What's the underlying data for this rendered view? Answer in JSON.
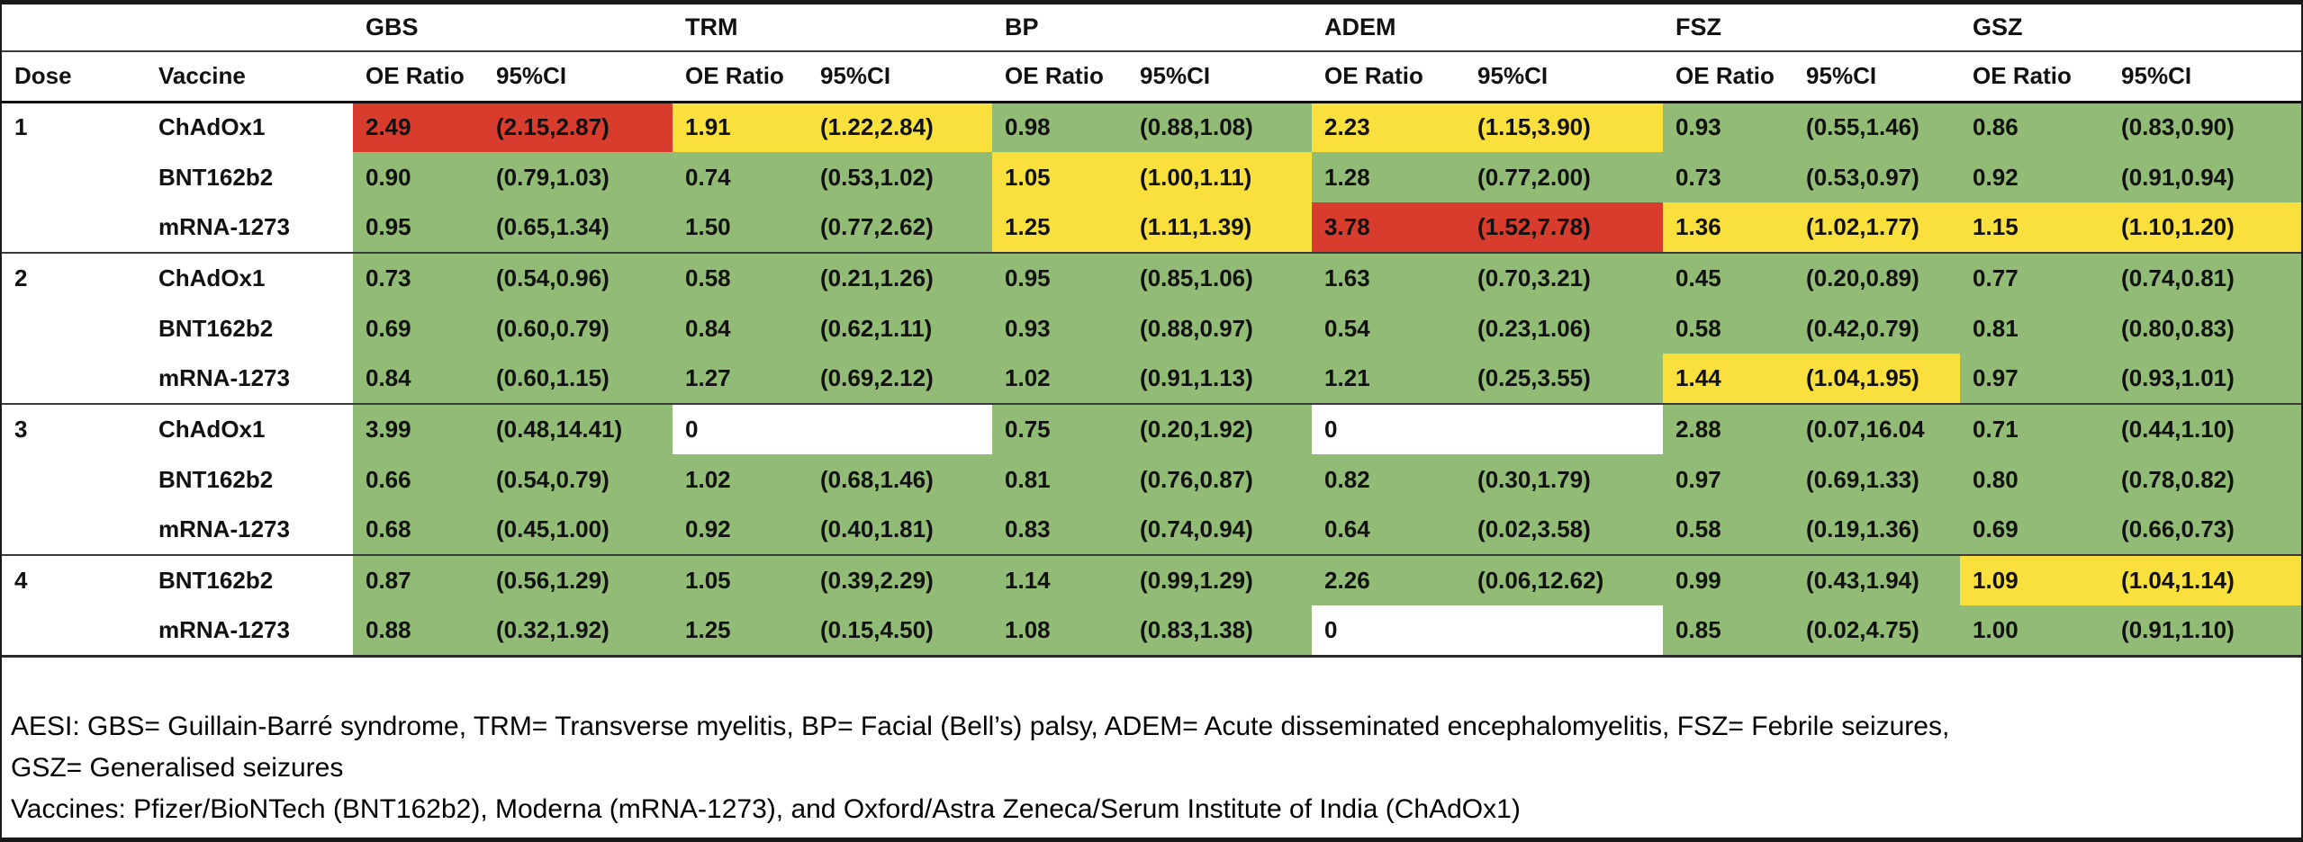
{
  "colors": {
    "green": "#92BB76",
    "yellow": "#FAE03C",
    "red": "#D73C2D",
    "empty": "#FFFFFF"
  },
  "table": {
    "group_headers": [
      "GBS",
      "TRM",
      "BP",
      "ADEM",
      "FSZ",
      "GSZ"
    ],
    "column_headers": {
      "dose": "Dose",
      "vaccine": "Vaccine",
      "oe_ratio": "OE Ratio",
      "ci": "95%CI"
    },
    "rows": [
      {
        "dose": "1",
        "vaccine": "ChAdOx1",
        "sep": true,
        "cells": [
          {
            "oe": "2.49",
            "ci": "(2.15,2.87)",
            "color": "red"
          },
          {
            "oe": "1.91",
            "ci": "(1.22,2.84)",
            "color": "yellow"
          },
          {
            "oe": "0.98",
            "ci": "(0.88,1.08)",
            "color": "green"
          },
          {
            "oe": "2.23",
            "ci": "(1.15,3.90)",
            "color": "yellow"
          },
          {
            "oe": "0.93",
            "ci": "(0.55,1.46)",
            "color": "green"
          },
          {
            "oe": "0.86",
            "ci": "(0.83,0.90)",
            "color": "green"
          }
        ]
      },
      {
        "dose": "",
        "vaccine": "BNT162b2",
        "sep": false,
        "cells": [
          {
            "oe": "0.90",
            "ci": "(0.79,1.03)",
            "color": "green"
          },
          {
            "oe": "0.74",
            "ci": "(0.53,1.02)",
            "color": "green"
          },
          {
            "oe": "1.05",
            "ci": "(1.00,1.11)",
            "color": "yellow"
          },
          {
            "oe": "1.28",
            "ci": "(0.77,2.00)",
            "color": "green"
          },
          {
            "oe": "0.73",
            "ci": "(0.53,0.97)",
            "color": "green"
          },
          {
            "oe": "0.92",
            "ci": "(0.91,0.94)",
            "color": "green"
          }
        ]
      },
      {
        "dose": "",
        "vaccine": "mRNA-1273",
        "sep": false,
        "cells": [
          {
            "oe": "0.95",
            "ci": "(0.65,1.34)",
            "color": "green"
          },
          {
            "oe": "1.50",
            "ci": "(0.77,2.62)",
            "color": "green"
          },
          {
            "oe": "1.25",
            "ci": "(1.11,1.39)",
            "color": "yellow"
          },
          {
            "oe": "3.78",
            "ci": "(1.52,7.78)",
            "color": "red"
          },
          {
            "oe": "1.36",
            "ci": "(1.02,1.77)",
            "color": "yellow"
          },
          {
            "oe": "1.15",
            "ci": "(1.10,1.20)",
            "color": "yellow"
          }
        ]
      },
      {
        "dose": "2",
        "vaccine": "ChAdOx1",
        "sep": true,
        "cells": [
          {
            "oe": "0.73",
            "ci": "(0.54,0.96)",
            "color": "green"
          },
          {
            "oe": "0.58",
            "ci": "(0.21,1.26)",
            "color": "green"
          },
          {
            "oe": "0.95",
            "ci": "(0.85,1.06)",
            "color": "green"
          },
          {
            "oe": "1.63",
            "ci": "(0.70,3.21)",
            "color": "green"
          },
          {
            "oe": "0.45",
            "ci": "(0.20,0.89)",
            "color": "green"
          },
          {
            "oe": "0.77",
            "ci": "(0.74,0.81)",
            "color": "green"
          }
        ]
      },
      {
        "dose": "",
        "vaccine": "BNT162b2",
        "sep": false,
        "cells": [
          {
            "oe": "0.69",
            "ci": "(0.60,0.79)",
            "color": "green"
          },
          {
            "oe": "0.84",
            "ci": "(0.62,1.11)",
            "color": "green"
          },
          {
            "oe": "0.93",
            "ci": "(0.88,0.97)",
            "color": "green"
          },
          {
            "oe": "0.54",
            "ci": "(0.23,1.06)",
            "color": "green"
          },
          {
            "oe": "0.58",
            "ci": "(0.42,0.79)",
            "color": "green"
          },
          {
            "oe": "0.81",
            "ci": "(0.80,0.83)",
            "color": "green"
          }
        ]
      },
      {
        "dose": "",
        "vaccine": "mRNA-1273",
        "sep": false,
        "cells": [
          {
            "oe": "0.84",
            "ci": "(0.60,1.15)",
            "color": "green"
          },
          {
            "oe": "1.27",
            "ci": "(0.69,2.12)",
            "color": "green"
          },
          {
            "oe": "1.02",
            "ci": "(0.91,1.13)",
            "color": "green"
          },
          {
            "oe": "1.21",
            "ci": "(0.25,3.55)",
            "color": "green"
          },
          {
            "oe": "1.44",
            "ci": "(1.04,1.95)",
            "color": "yellow"
          },
          {
            "oe": "0.97",
            "ci": "(0.93,1.01)",
            "color": "green"
          }
        ]
      },
      {
        "dose": "3",
        "vaccine": "ChAdOx1",
        "sep": true,
        "cells": [
          {
            "oe": "3.99",
            "ci": "(0.48,14.41)",
            "color": "green"
          },
          {
            "oe": "0",
            "ci": "",
            "color": "white"
          },
          {
            "oe": "0.75",
            "ci": "(0.20,1.92)",
            "color": "green"
          },
          {
            "oe": "0",
            "ci": "",
            "color": "white"
          },
          {
            "oe": "2.88",
            "ci": "(0.07,16.04",
            "color": "green"
          },
          {
            "oe": "0.71",
            "ci": "(0.44,1.10)",
            "color": "green"
          }
        ]
      },
      {
        "dose": "",
        "vaccine": "BNT162b2",
        "sep": false,
        "cells": [
          {
            "oe": "0.66",
            "ci": "(0.54,0.79)",
            "color": "green"
          },
          {
            "oe": "1.02",
            "ci": "(0.68,1.46)",
            "color": "green"
          },
          {
            "oe": "0.81",
            "ci": "(0.76,0.87)",
            "color": "green"
          },
          {
            "oe": "0.82",
            "ci": "(0.30,1.79)",
            "color": "green"
          },
          {
            "oe": "0.97",
            "ci": "(0.69,1.33)",
            "color": "green"
          },
          {
            "oe": "0.80",
            "ci": "(0.78,0.82)",
            "color": "green"
          }
        ]
      },
      {
        "dose": "",
        "vaccine": "mRNA-1273",
        "sep": false,
        "cells": [
          {
            "oe": "0.68",
            "ci": "(0.45,1.00)",
            "color": "green"
          },
          {
            "oe": "0.92",
            "ci": "(0.40,1.81)",
            "color": "green"
          },
          {
            "oe": "0.83",
            "ci": "(0.74,0.94)",
            "color": "green"
          },
          {
            "oe": "0.64",
            "ci": "(0.02,3.58)",
            "color": "green"
          },
          {
            "oe": "0.58",
            "ci": "(0.19,1.36)",
            "color": "green"
          },
          {
            "oe": "0.69",
            "ci": "(0.66,0.73)",
            "color": "green"
          }
        ]
      },
      {
        "dose": "4",
        "vaccine": "BNT162b2",
        "sep": true,
        "cells": [
          {
            "oe": "0.87",
            "ci": "(0.56,1.29)",
            "color": "green"
          },
          {
            "oe": "1.05",
            "ci": "(0.39,2.29)",
            "color": "green"
          },
          {
            "oe": "1.14",
            "ci": "(0.99,1.29)",
            "color": "green"
          },
          {
            "oe": "2.26",
            "ci": "(0.06,12.62)",
            "color": "green"
          },
          {
            "oe": "0.99",
            "ci": "(0.43,1.94)",
            "color": "green"
          },
          {
            "oe": "1.09",
            "ci": "(1.04,1.14)",
            "color": "yellow"
          }
        ]
      },
      {
        "dose": "",
        "vaccine": "mRNA-1273",
        "sep": false,
        "cells": [
          {
            "oe": "0.88",
            "ci": "(0.32,1.92)",
            "color": "green"
          },
          {
            "oe": "1.25",
            "ci": "(0.15,4.50)",
            "color": "green"
          },
          {
            "oe": "1.08",
            "ci": "(0.83,1.38)",
            "color": "green"
          },
          {
            "oe": "0",
            "ci": "",
            "color": "white"
          },
          {
            "oe": "0.85",
            "ci": "(0.02,4.75)",
            "color": "green"
          },
          {
            "oe": "1.00",
            "ci": "(0.91,1.10)",
            "color": "green"
          }
        ]
      }
    ]
  },
  "footnotes": {
    "line1": "AESI: GBS= Guillain-Barré syndrome, TRM= Transverse myelitis, BP= Facial (Bell’s) palsy, ADEM= Acute disseminated encephalomyelitis, FSZ= Febrile seizures,",
    "line2": "GSZ= Generalised seizures",
    "line3": "Vaccines: Pfizer/BioNTech (BNT162b2), Moderna (mRNA-1273), and Oxford/Astra Zeneca/Serum Institute of India (ChAdOx1)"
  }
}
